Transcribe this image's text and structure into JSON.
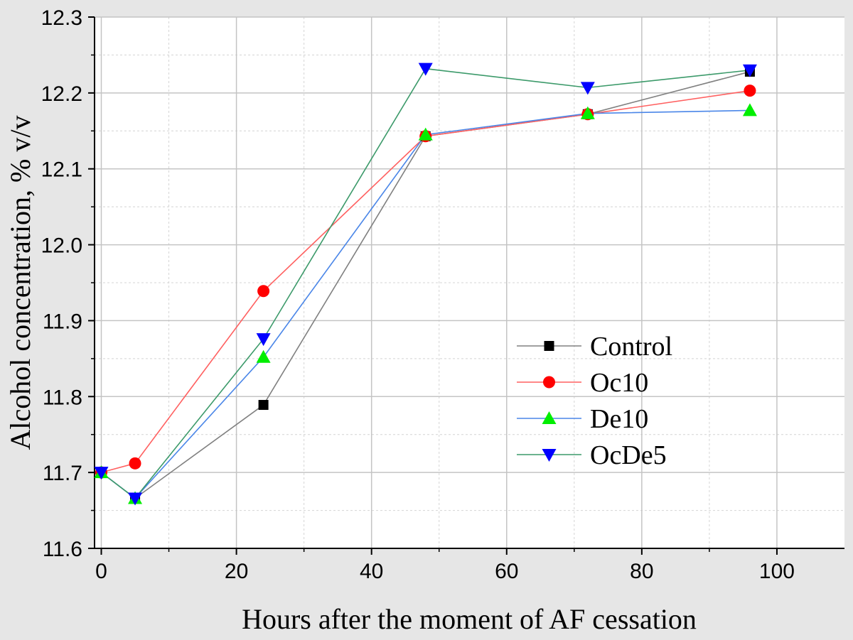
{
  "chart_data": {
    "type": "line",
    "title": "",
    "xlabel": "Hours after the moment of AF cessation",
    "ylabel": "Alcohol concentration, % v/v",
    "xlim": [
      -1,
      110
    ],
    "ylim": [
      11.6,
      12.3
    ],
    "x_ticks": [
      0,
      20,
      40,
      60,
      80,
      100
    ],
    "y_ticks": [
      11.6,
      11.7,
      11.8,
      11.9,
      12.0,
      12.1,
      12.2,
      12.3
    ],
    "x_tick_labels": [
      "0",
      "20",
      "40",
      "60",
      "80",
      "100"
    ],
    "y_tick_labels": [
      "11.6",
      "11.7",
      "11.8",
      "11.9",
      "12.0",
      "12.1",
      "12.2",
      "12.3"
    ],
    "grid": true,
    "legend_position": "right",
    "x": [
      0,
      5,
      24,
      48,
      72,
      96
    ],
    "series": [
      {
        "name": "Control",
        "color": "#000000",
        "line_color": "#808080",
        "marker": "square",
        "values": [
          11.7,
          11.666,
          11.789,
          12.143,
          12.172,
          12.228
        ]
      },
      {
        "name": "Oc10",
        "color": "#ff0000",
        "line_color": "#ff6060",
        "marker": "circle",
        "values": [
          11.7,
          11.712,
          11.939,
          12.143,
          12.172,
          12.203
        ]
      },
      {
        "name": "De10",
        "color": "#00ee00",
        "line_color": "#4a86e8",
        "marker": "triangle-up",
        "values": [
          11.7,
          11.666,
          11.852,
          12.145,
          12.173,
          12.177
        ]
      },
      {
        "name": "OcDe5",
        "color": "#0000ff",
        "line_color": "#3c9a6a",
        "marker": "triangle-down",
        "values": [
          11.7,
          11.666,
          11.876,
          12.232,
          12.207,
          12.23
        ]
      }
    ]
  }
}
